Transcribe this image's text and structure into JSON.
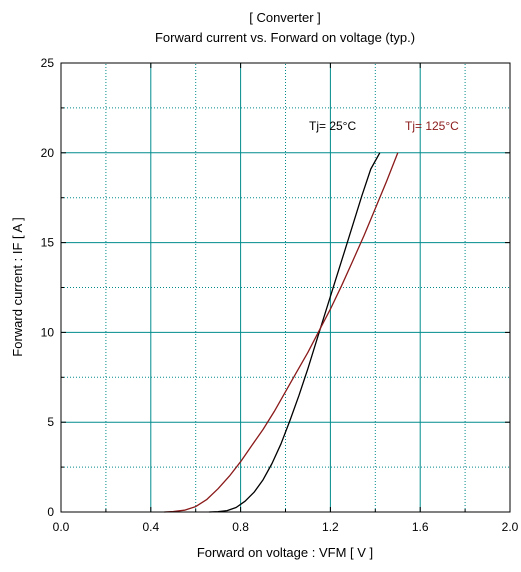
{
  "chart_data": {
    "type": "line",
    "title": "[ Converter ]",
    "subtitle": "Forward current  vs.  Forward on voltage  (typ.)",
    "xlabel": "Forward on voltage  :  VFM  [ V ]",
    "ylabel": "Forward current  :  IF  [ A ]",
    "xlim": [
      0.0,
      2.0
    ],
    "ylim": [
      0,
      25
    ],
    "x_ticks": [
      0.0,
      0.4,
      0.8,
      1.2,
      1.6,
      2.0
    ],
    "x_tick_labels": [
      "0.0",
      "0.4",
      "0.8",
      "1.2",
      "1.6",
      "2.0"
    ],
    "y_ticks": [
      0,
      5,
      10,
      15,
      20,
      25
    ],
    "y_tick_labels": [
      "0",
      "5",
      "10",
      "15",
      "20",
      "25"
    ],
    "grid": true,
    "series": [
      {
        "name": "Tj= 25°C",
        "color": "#000000",
        "x": [
          0.66,
          0.7,
          0.74,
          0.78,
          0.82,
          0.86,
          0.9,
          0.94,
          0.98,
          1.02,
          1.06,
          1.1,
          1.14,
          1.18,
          1.22,
          1.26,
          1.3,
          1.34,
          1.38,
          1.42
        ],
        "y": [
          0.0,
          0.02,
          0.08,
          0.25,
          0.6,
          1.1,
          1.8,
          2.7,
          3.8,
          5.1,
          6.5,
          8.0,
          9.6,
          11.2,
          12.8,
          14.4,
          16.0,
          17.6,
          19.1,
          20.0
        ]
      },
      {
        "name": "Tj= 125°C",
        "color": "#8b1a1a",
        "x": [
          0.46,
          0.5,
          0.55,
          0.6,
          0.65,
          0.7,
          0.75,
          0.8,
          0.85,
          0.9,
          0.95,
          1.0,
          1.05,
          1.1,
          1.15,
          1.2,
          1.25,
          1.3,
          1.35,
          1.4,
          1.45,
          1.5
        ],
        "y": [
          0.0,
          0.03,
          0.1,
          0.3,
          0.7,
          1.3,
          2.0,
          2.8,
          3.7,
          4.6,
          5.6,
          6.7,
          7.8,
          8.9,
          10.1,
          11.3,
          12.6,
          14.0,
          15.4,
          16.9,
          18.4,
          20.0
        ]
      }
    ],
    "annotations": [
      "Tj= 25°C",
      "Tj= 125°C"
    ],
    "colors": {
      "axis": "#000000",
      "grid_major": "#008b8b",
      "grid_minor": "#008b8b"
    }
  }
}
